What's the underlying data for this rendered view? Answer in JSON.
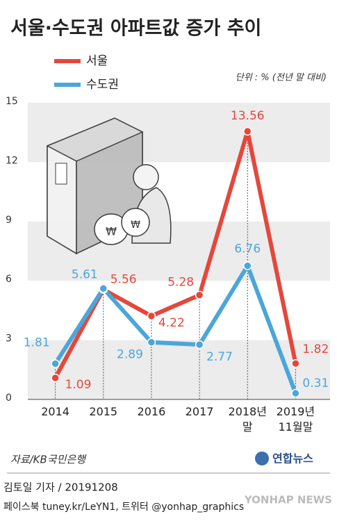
{
  "chart_data": {
    "type": "line",
    "title": "서울·수도권 아파트값 증가 추이",
    "unit": "단위 : % (전년 말 대비)",
    "categories": [
      "2014",
      "2015",
      "2016",
      "2017",
      "2018년\n말",
      "2019년\n11월말"
    ],
    "series": [
      {
        "name": "서울",
        "color": "#e5473b",
        "values": [
          1.09,
          5.56,
          4.22,
          5.28,
          13.56,
          1.82
        ]
      },
      {
        "name": "수도권",
        "color": "#4ba6da",
        "values": [
          1.81,
          5.61,
          2.89,
          2.77,
          6.76,
          0.31
        ]
      }
    ],
    "ylim": [
      0,
      15
    ],
    "yticks": [
      0,
      3,
      6,
      9,
      12,
      15
    ],
    "grid": true,
    "source": "자료/KB국민은행",
    "byline": "김토일 기자 / 20191208",
    "social": "페이스북 tuney.kr/LeYN1, 트위터 @yonhap_graphics",
    "logo": "연합뉴스",
    "watermark": "YONHAP NEWS"
  }
}
